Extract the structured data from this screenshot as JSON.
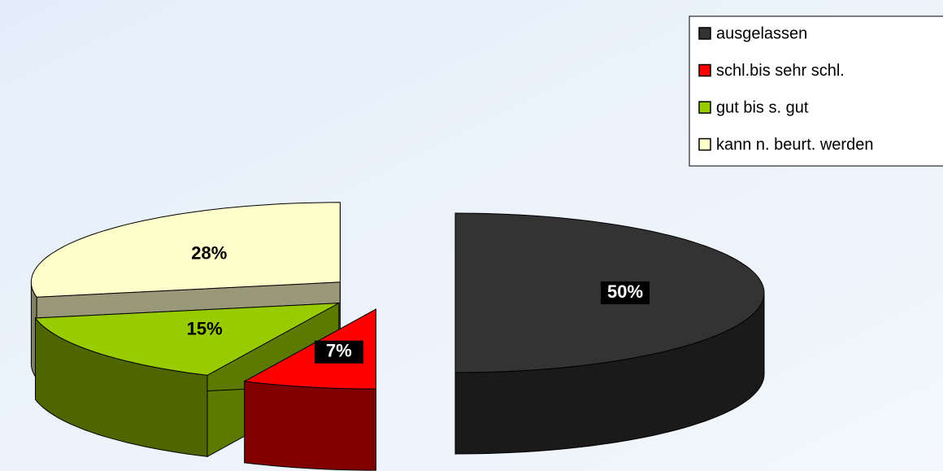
{
  "chart_data": {
    "type": "pie",
    "series": [
      {
        "name": "ausgelassen",
        "color": "#333333",
        "values": [
          50
        ],
        "value_labels": [
          "50%"
        ]
      },
      {
        "name": "schl.bis sehr schl.",
        "color": "#ff0000",
        "values": [
          7
        ],
        "value_labels": [
          "7%"
        ]
      },
      {
        "name": "gut bis s. gut",
        "color": "#99cc00",
        "values": [
          15
        ],
        "value_labels": [
          "15%"
        ]
      },
      {
        "name": "kann n. beurt. werden",
        "color": "#ffffcc",
        "values": [
          28
        ],
        "value_labels": [
          "28%"
        ]
      }
    ],
    "legend": "top-right"
  }
}
